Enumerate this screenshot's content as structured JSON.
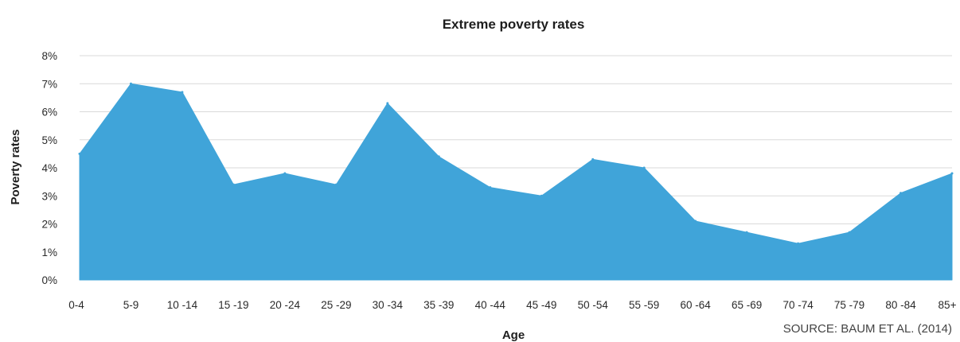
{
  "chart_data": {
    "type": "area",
    "title": "Extreme poverty rates",
    "xlabel": "Age",
    "ylabel": "Poverty rates",
    "categories": [
      "0-4",
      "5-9",
      "10-14",
      "15-19",
      "20-24",
      "25-29",
      "30-34",
      "35-39",
      "40-44",
      "45-49",
      "50-54",
      "55-59",
      "60-64",
      "65-69",
      "70-74",
      "75-79",
      "80-84",
      "85+"
    ],
    "x_tick_labels": [
      "0-4",
      "5-9",
      "10 -14",
      "15 -19",
      "20 -24",
      "25 -29",
      "30 -34",
      "35 -39",
      "40 -44",
      "45 -49",
      "50 -54",
      "55 -59",
      "60 -64",
      "65 -69",
      "70 -74",
      "75 -79",
      "80 -84",
      "85+"
    ],
    "values": [
      4.5,
      7.0,
      6.7,
      3.4,
      3.8,
      3.4,
      6.3,
      4.4,
      3.3,
      3.0,
      4.3,
      4.0,
      2.1,
      1.7,
      1.3,
      1.7,
      3.1,
      3.8
    ],
    "ylim": [
      0,
      8
    ],
    "y_ticks": [
      0,
      1,
      2,
      3,
      4,
      5,
      6,
      7,
      8
    ],
    "y_tick_labels": [
      "0%",
      "1%",
      "2%",
      "3%",
      "4%",
      "5%",
      "6%",
      "7%",
      "8%"
    ],
    "grid": true,
    "fill_color": "#40a4d9",
    "grid_color": "#d9d9d9"
  },
  "source_note": "SOURCE: BAUM ET AL. (2014)"
}
